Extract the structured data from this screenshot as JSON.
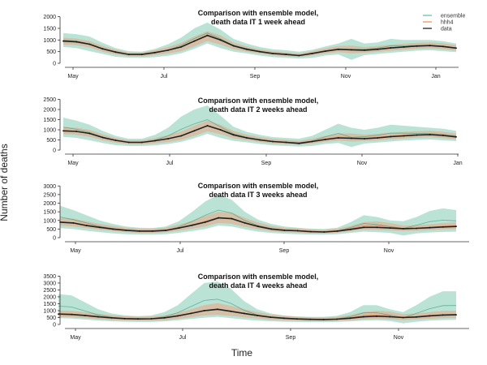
{
  "figure": {
    "xlabel": "Time",
    "ylabel": "Number of deaths",
    "legend": {
      "placement": "top-right",
      "items": [
        {
          "name": "ensemble",
          "color": "#66c2a5"
        },
        {
          "name": "hhh4",
          "color": "#fc8d62"
        },
        {
          "name": "data",
          "color": "#222222"
        }
      ]
    }
  },
  "chart_data": [
    {
      "type": "line",
      "title": "Comparison with ensemble model,\ndeath data IT 1 week ahead",
      "x_ticks": [
        "May",
        "Jul",
        "Sep",
        "Nov",
        "Jan"
      ],
      "ylim": [
        0,
        2300
      ],
      "y_ticks": [
        0,
        500,
        1000,
        1500,
        2000
      ],
      "grid": false,
      "series": [
        {
          "name": "data",
          "color": "#222222",
          "values": [
            950,
            920,
            820,
            620,
            480,
            380,
            380,
            460,
            560,
            700,
            950,
            1200,
            1000,
            750,
            600,
            500,
            420,
            380,
            330,
            420,
            520,
            600,
            580,
            560,
            600,
            660,
            700,
            740,
            760,
            720,
            650
          ]
        },
        {
          "name": "ensemble_low",
          "color": "#66c2a5",
          "values": [
            700,
            650,
            520,
            400,
            280,
            240,
            230,
            260,
            320,
            430,
            620,
            850,
            650,
            500,
            420,
            330,
            260,
            230,
            200,
            230,
            330,
            380,
            150,
            350,
            400,
            450,
            500,
            540,
            560,
            520,
            480
          ]
        },
        {
          "name": "ensemble_high",
          "color": "#66c2a5",
          "values": [
            1300,
            1250,
            1150,
            880,
            650,
            520,
            500,
            620,
            820,
            1100,
            1500,
            1750,
            1450,
            1050,
            850,
            700,
            600,
            560,
            500,
            580,
            720,
            850,
            1050,
            850,
            900,
            1050,
            1000,
            1000,
            1000,
            950,
            850
          ]
        },
        {
          "name": "hhh4_low",
          "color": "#fc8d62",
          "values": [
            800,
            780,
            680,
            500,
            380,
            300,
            290,
            350,
            420,
            520,
            720,
            950,
            800,
            600,
            500,
            420,
            340,
            300,
            270,
            330,
            420,
            480,
            420,
            450,
            490,
            540,
            580,
            620,
            640,
            600,
            540
          ]
        },
        {
          "name": "hhh4_high",
          "color": "#fc8d62",
          "values": [
            1100,
            1060,
            960,
            750,
            580,
            460,
            460,
            560,
            700,
            880,
            1150,
            1380,
            1200,
            900,
            720,
            600,
            520,
            470,
            420,
            520,
            640,
            740,
            760,
            700,
            740,
            800,
            840,
            880,
            900,
            860,
            780
          ]
        }
      ]
    },
    {
      "type": "line",
      "title": "Comparison with ensemble model,\ndeath data IT 2 weeks ahead",
      "x_ticks": [
        "May",
        "Jul",
        "Sep",
        "Nov",
        "Jan"
      ],
      "ylim": [
        0,
        2600
      ],
      "y_ticks": [
        0,
        500,
        1000,
        1500,
        2000,
        2500
      ],
      "grid": false,
      "series": [
        {
          "name": "data",
          "color": "#222222",
          "values": [
            950,
            920,
            820,
            620,
            480,
            380,
            380,
            460,
            560,
            700,
            950,
            1200,
            1000,
            750,
            600,
            500,
            420,
            380,
            330,
            420,
            520,
            600,
            580,
            560,
            600,
            660,
            700,
            740,
            760,
            720,
            650
          ]
        },
        {
          "name": "ensemble_low",
          "color": "#66c2a5",
          "values": [
            650,
            600,
            480,
            350,
            240,
            200,
            200,
            230,
            300,
            400,
            580,
            800,
            600,
            450,
            380,
            300,
            230,
            200,
            170,
            200,
            300,
            350,
            150,
            320,
            370,
            420,
            470,
            500,
            520,
            480,
            440
          ]
        },
        {
          "name": "ensemble_high",
          "color": "#66c2a5",
          "values": [
            1600,
            1450,
            1250,
            950,
            700,
            560,
            560,
            750,
            1100,
            1650,
            2000,
            2200,
            1700,
            1150,
            900,
            750,
            640,
            600,
            560,
            700,
            1000,
            1300,
            1100,
            1000,
            1100,
            1250,
            1200,
            1150,
            1100,
            1050,
            950
          ]
        },
        {
          "name": "hhh4_low",
          "color": "#fc8d62",
          "values": [
            780,
            750,
            650,
            480,
            360,
            290,
            280,
            330,
            400,
            500,
            700,
            920,
            780,
            580,
            480,
            400,
            320,
            290,
            260,
            320,
            410,
            470,
            420,
            440,
            480,
            530,
            570,
            610,
            630,
            590,
            530
          ]
        },
        {
          "name": "hhh4_high",
          "color": "#fc8d62",
          "values": [
            1150,
            1100,
            1000,
            780,
            600,
            480,
            480,
            590,
            740,
            920,
            1200,
            1450,
            1250,
            950,
            760,
            640,
            550,
            500,
            450,
            560,
            700,
            820,
            820,
            760,
            800,
            860,
            900,
            930,
            950,
            900,
            820
          ]
        }
      ]
    },
    {
      "type": "line",
      "title": "Comparison with ensemble model,\ndeath data IT 3 weeks ahead",
      "x_ticks": [
        "May",
        "Jul",
        "Sep",
        "Nov"
      ],
      "ylim": [
        0,
        3200
      ],
      "y_ticks": [
        0,
        500,
        1000,
        1500,
        2000,
        2500,
        3000
      ],
      "grid": false,
      "series": [
        {
          "name": "data",
          "color": "#222222",
          "values": [
            900,
            850,
            700,
            600,
            500,
            430,
            380,
            380,
            420,
            560,
            720,
            900,
            1150,
            1100,
            850,
            650,
            500,
            430,
            400,
            350,
            330,
            380,
            480,
            600,
            600,
            560,
            520,
            540,
            580,
            620,
            650
          ]
        },
        {
          "name": "ensemble_low",
          "color": "#66c2a5",
          "values": [
            550,
            500,
            400,
            320,
            250,
            200,
            180,
            170,
            200,
            280,
            380,
            500,
            700,
            650,
            480,
            350,
            270,
            230,
            200,
            180,
            170,
            200,
            280,
            350,
            320,
            280,
            120,
            250,
            300,
            330,
            350
          ]
        },
        {
          "name": "ensemble_high",
          "color": "#66c2a5",
          "values": [
            1850,
            1600,
            1300,
            1000,
            800,
            650,
            580,
            560,
            650,
            950,
            1500,
            2100,
            2500,
            2200,
            1500,
            1050,
            800,
            650,
            580,
            520,
            500,
            580,
            900,
            1300,
            1200,
            1000,
            950,
            1200,
            1550,
            1700,
            1600
          ]
        },
        {
          "name": "hhh4_low",
          "color": "#fc8d62",
          "values": [
            700,
            650,
            550,
            460,
            380,
            320,
            280,
            280,
            310,
            400,
            520,
            650,
            850,
            800,
            620,
            480,
            370,
            320,
            290,
            260,
            250,
            290,
            370,
            470,
            460,
            420,
            380,
            400,
            440,
            480,
            500
          ]
        },
        {
          "name": "hhh4_high",
          "color": "#fc8d62",
          "values": [
            1150,
            1100,
            950,
            800,
            680,
            580,
            520,
            520,
            580,
            760,
            980,
            1250,
            1500,
            1450,
            1150,
            880,
            680,
            580,
            540,
            480,
            460,
            520,
            680,
            900,
            950,
            850,
            700,
            720,
            780,
            850,
            880
          ]
        }
      ]
    },
    {
      "type": "line",
      "title": "Comparison with ensemble model,\ndeath data IT 4 weeks ahead",
      "x_ticks": [
        "May",
        "Jul",
        "Sep",
        "Nov"
      ],
      "ylim": [
        0,
        3700
      ],
      "y_ticks": [
        0,
        500,
        1000,
        1500,
        2000,
        2500,
        3000,
        3500
      ],
      "grid": false,
      "series": [
        {
          "name": "data",
          "color": "#222222",
          "values": [
            750,
            720,
            650,
            550,
            480,
            420,
            400,
            410,
            480,
            620,
            800,
            1000,
            1100,
            950,
            800,
            650,
            520,
            450,
            400,
            370,
            360,
            380,
            450,
            550,
            600,
            560,
            500,
            540,
            620,
            680,
            700
          ]
        },
        {
          "name": "ensemble_low",
          "color": "#66c2a5",
          "values": [
            450,
            420,
            350,
            280,
            230,
            200,
            180,
            180,
            220,
            300,
            400,
            480,
            550,
            450,
            350,
            280,
            230,
            200,
            180,
            170,
            160,
            180,
            220,
            280,
            300,
            250,
            80,
            200,
            280,
            320,
            340
          ]
        },
        {
          "name": "ensemble_high",
          "color": "#66c2a5",
          "values": [
            2200,
            2100,
            1600,
            1100,
            800,
            650,
            600,
            650,
            900,
            1400,
            2200,
            3000,
            3100,
            2600,
            1700,
            1100,
            800,
            650,
            580,
            550,
            550,
            620,
            900,
            1400,
            1400,
            1100,
            900,
            1400,
            2000,
            2400,
            2400
          ]
        },
        {
          "name": "hhh4_low",
          "color": "#fc8d62",
          "values": [
            550,
            520,
            450,
            380,
            320,
            280,
            260,
            260,
            300,
            400,
            520,
            650,
            700,
            620,
            520,
            420,
            340,
            290,
            260,
            240,
            230,
            250,
            300,
            370,
            400,
            370,
            320,
            350,
            410,
            450,
            470
          ]
        },
        {
          "name": "hhh4_high",
          "color": "#fc8d62",
          "values": [
            1000,
            980,
            900,
            780,
            680,
            600,
            560,
            570,
            660,
            850,
            1100,
            1400,
            1550,
            1350,
            1100,
            900,
            720,
            620,
            560,
            520,
            510,
            550,
            680,
            900,
            1000,
            920,
            750,
            800,
            900,
            980,
            1000
          ]
        }
      ]
    }
  ]
}
